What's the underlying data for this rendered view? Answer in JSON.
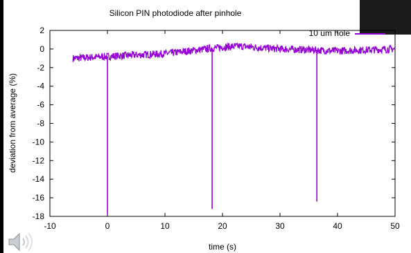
{
  "chart_data": {
    "type": "line",
    "title": "Silicon PIN photodiode after pinhole",
    "xlabel": "time (s)",
    "ylabel": "deviation from average (%)",
    "xlim": [
      -10,
      50
    ],
    "ylim": [
      -18,
      2
    ],
    "xticks": [
      -10,
      0,
      10,
      20,
      30,
      40,
      50
    ],
    "yticks": [
      2,
      0,
      -2,
      -4,
      -6,
      -8,
      -10,
      -12,
      -14,
      -16,
      -18
    ],
    "grid": false,
    "legend_position": "top-right",
    "series": [
      {
        "name": "10 um hole",
        "color": "#9400d3",
        "x_range": [
          -6,
          50
        ],
        "baseline": [
          [
            -6,
            -1.0
          ],
          [
            0,
            -0.8
          ],
          [
            10,
            -0.5
          ],
          [
            20,
            0.2
          ],
          [
            23,
            0.3
          ],
          [
            30,
            0.0
          ],
          [
            40,
            -0.2
          ],
          [
            50,
            0.0
          ]
        ],
        "noise_amplitude": 0.4,
        "dips": [
          {
            "x": 0.0,
            "y": -17.8
          },
          {
            "x": 18.2,
            "y": -17.2
          },
          {
            "x": 36.4,
            "y": -16.4
          }
        ]
      }
    ]
  },
  "icons": {
    "speaker": "speaker-icon"
  }
}
